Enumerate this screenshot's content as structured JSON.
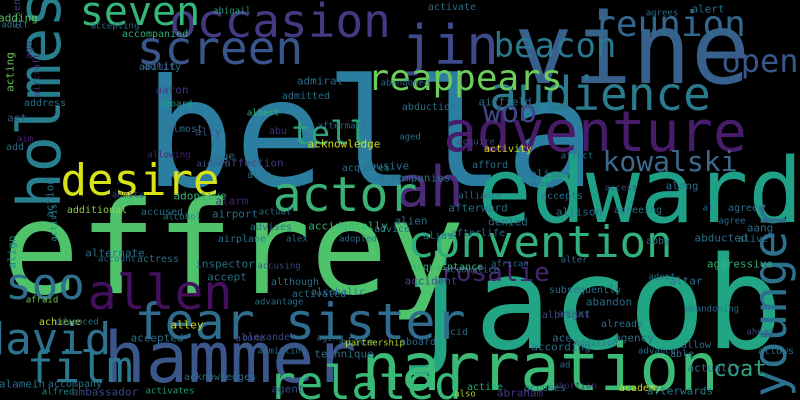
{
  "background": "#000000",
  "palette": [
    "#440154",
    "#3b528b",
    "#21918c",
    "#5ec962",
    "#fde725"
  ],
  "words": [
    {
      "text": "bella",
      "weight": 1.0,
      "color": "#2b7ea0",
      "vertical": false
    },
    {
      "text": "jacob",
      "weight": 0.86,
      "color": "#22a584",
      "vertical": false
    },
    {
      "text": "jeffrey",
      "weight": 0.86,
      "color": "#4ec36b",
      "vertical": false
    },
    {
      "text": "vine",
      "weight": 0.66,
      "color": "#37608d",
      "vertical": false
    },
    {
      "text": "edward",
      "weight": 0.6,
      "color": "#1fa187",
      "vertical": false
    },
    {
      "text": "hammer",
      "weight": 0.46,
      "color": "#3a568b",
      "vertical": false
    },
    {
      "text": "narration",
      "weight": 0.44,
      "color": "#3bbb75",
      "vertical": false
    },
    {
      "text": "holmes",
      "weight": 0.42,
      "color": "#277f8e",
      "vertical": true
    },
    {
      "text": "adventure",
      "weight": 0.38,
      "color": "#471d6b",
      "vertical": false
    },
    {
      "text": "ah",
      "weight": 0.38,
      "color": "#4a2a77",
      "vertical": false
    },
    {
      "text": "jin",
      "weight": 0.36,
      "color": "#3e4a89",
      "vertical": false
    },
    {
      "text": "fear sister",
      "weight": 0.34,
      "color": "#2f6c8e",
      "vertical": false
    },
    {
      "text": "actor",
      "weight": 0.32,
      "color": "#3ab177",
      "vertical": false
    },
    {
      "text": "allen",
      "weight": 0.32,
      "color": "#440f5c",
      "vertical": false
    },
    {
      "text": "related",
      "weight": 0.3,
      "color": "#37b978",
      "vertical": false
    },
    {
      "text": "younger",
      "weight": 0.3,
      "color": "#2c728e",
      "vertical": true
    },
    {
      "text": "screen",
      "weight": 0.3,
      "color": "#39558c",
      "vertical": false
    },
    {
      "text": "occasion",
      "weight": 0.3,
      "color": "#443a83",
      "vertical": false
    },
    {
      "text": "audience",
      "weight": 0.3,
      "color": "#2b7b8e",
      "vertical": false
    },
    {
      "text": "convention",
      "weight": 0.29,
      "color": "#30b07d",
      "vertical": false
    },
    {
      "text": "desire",
      "weight": 0.29,
      "color": "#d8e219",
      "vertical": false
    },
    {
      "text": "david",
      "weight": 0.29,
      "color": "#2d718e",
      "vertical": false
    },
    {
      "text": "film",
      "weight": 0.29,
      "color": "#2a788e",
      "vertical": false
    },
    {
      "text": "soo",
      "weight": 0.29,
      "color": "#2e6f8e",
      "vertical": false
    },
    {
      "text": "seven",
      "weight": 0.26,
      "color": "#35b779",
      "vertical": false
    },
    {
      "text": "reappears",
      "weight": 0.24,
      "color": "#6ccd5a",
      "vertical": false
    },
    {
      "text": "reunion",
      "weight": 0.24,
      "color": "#31688e",
      "vertical": false
    },
    {
      "text": "beacon",
      "weight": 0.22,
      "color": "#2a788e",
      "vertical": false
    },
    {
      "text": "open",
      "weight": 0.21,
      "color": "#38588c",
      "vertical": false
    },
    {
      "text": "tell",
      "weight": 0.21,
      "color": "#2ea37c",
      "vertical": false
    },
    {
      "text": "woo",
      "weight": 0.2,
      "color": "#3f4788",
      "vertical": false
    },
    {
      "text": "kowalski",
      "weight": 0.18,
      "color": "#3d6a8c",
      "vertical": false
    },
    {
      "text": "rosalie",
      "weight": 0.16,
      "color": "#46256f",
      "vertical": false
    },
    {
      "text": "coat",
      "weight": 0.14,
      "color": "#31a47d",
      "vertical": false
    },
    {
      "text": "absence",
      "weight": 0.05,
      "color": "#433e85",
      "vertical": false
    },
    {
      "text": "adding",
      "weight": 0.05,
      "color": "#5ec962",
      "vertical": false
    },
    {
      "text": "adult",
      "weight": 0.05,
      "color": "#2c7d8e",
      "vertical": false
    },
    {
      "text": "ago",
      "weight": 0.05,
      "color": "#46327e",
      "vertical": false
    },
    {
      "text": "acting",
      "weight": 0.05,
      "color": "#6ccd5a",
      "vertical": false
    },
    {
      "text": "aircraft",
      "weight": 0.05,
      "color": "#46307e",
      "vertical": false
    },
    {
      "text": "address",
      "weight": 0.05,
      "color": "#2d708e",
      "vertical": false
    },
    {
      "text": "act",
      "weight": 0.05,
      "color": "#38588c",
      "vertical": false
    },
    {
      "text": "aim",
      "weight": 0.05,
      "color": "#482475",
      "vertical": false
    },
    {
      "text": "add",
      "weight": 0.05,
      "color": "#2c728e",
      "vertical": false
    },
    {
      "text": "action",
      "weight": 0.05,
      "color": "#2a778e",
      "vertical": false
    },
    {
      "text": "activist",
      "weight": 0.05,
      "color": "#21918c",
      "vertical": false
    },
    {
      "text": "additional",
      "weight": 0.05,
      "color": "#8fd744",
      "vertical": false
    },
    {
      "text": "align",
      "weight": 0.05,
      "color": "#25858e",
      "vertical": false
    },
    {
      "text": "afraid",
      "weight": 0.05,
      "color": "#7ad151",
      "vertical": false
    },
    {
      "text": "achieve",
      "weight": 0.05,
      "color": "#c2df23",
      "vertical": false
    },
    {
      "text": "alamein",
      "weight": 0.05,
      "color": "#2c728e",
      "vertical": false
    },
    {
      "text": "alfred",
      "weight": 0.05,
      "color": "#21918c",
      "vertical": false
    },
    {
      "text": "accompany",
      "weight": 0.05,
      "color": "#2a788e",
      "vertical": false
    },
    {
      "text": "ambassador",
      "weight": 0.05,
      "color": "#3e4a89",
      "vertical": false
    },
    {
      "text": "activates",
      "weight": 0.05,
      "color": "#22a884",
      "vertical": false
    },
    {
      "text": "acknowledges",
      "weight": 0.05,
      "color": "#2c728e",
      "vertical": false
    },
    {
      "text": "agent",
      "weight": 0.05,
      "color": "#3b528b",
      "vertical": false
    },
    {
      "text": "also",
      "weight": 0.05,
      "color": "#addc30",
      "vertical": false
    },
    {
      "text": "active",
      "weight": 0.05,
      "color": "#2ab07f",
      "vertical": false
    },
    {
      "text": "abraham",
      "weight": 0.05,
      "color": "#433e85",
      "vertical": false
    },
    {
      "text": "abortion",
      "weight": 0.05,
      "color": "#482878",
      "vertical": false
    },
    {
      "text": "academy",
      "weight": 0.05,
      "color": "#d2e21b",
      "vertical": false
    },
    {
      "text": "afterwards",
      "weight": 0.05,
      "color": "#25858e",
      "vertical": false
    },
    {
      "text": "accepting",
      "weight": 0.05,
      "color": "#2c728e",
      "vertical": false
    },
    {
      "text": "accompanied",
      "weight": 0.05,
      "color": "#35b779",
      "vertical": false
    },
    {
      "text": "admit",
      "weight": 0.05,
      "color": "#3e4a89",
      "vertical": false
    },
    {
      "text": "abigail",
      "weight": 0.05,
      "color": "#22a884",
      "vertical": false
    },
    {
      "text": "ability",
      "weight": 0.05,
      "color": "#2a788e",
      "vertical": false
    },
    {
      "text": "aaron",
      "weight": 0.05,
      "color": "#443983",
      "vertical": false
    },
    {
      "text": "aboard",
      "weight": 0.05,
      "color": "#1fa187",
      "vertical": false
    },
    {
      "text": "almost",
      "weight": 0.05,
      "color": "#2e6e8e",
      "vertical": false
    },
    {
      "text": "ally",
      "weight": 0.05,
      "color": "#3b528b",
      "vertical": false
    },
    {
      "text": "albert",
      "weight": 0.05,
      "color": "#35b779",
      "vertical": false
    },
    {
      "text": "abu",
      "weight": 0.05,
      "color": "#46337f",
      "vertical": false
    },
    {
      "text": "abe",
      "weight": 0.05,
      "color": "#2c728e",
      "vertical": false
    },
    {
      "text": "allowing",
      "weight": 0.05,
      "color": "#482475",
      "vertical": false
    },
    {
      "text": "age",
      "weight": 0.05,
      "color": "#2c728e",
      "vertical": false
    },
    {
      "text": "affection",
      "weight": 0.05,
      "color": "#433e85",
      "vertical": false
    },
    {
      "text": "aided",
      "weight": 0.05,
      "color": "#3b528b",
      "vertical": false
    },
    {
      "text": "alec",
      "weight": 0.05,
      "color": "#2c728e",
      "vertical": false
    },
    {
      "text": "adoptive",
      "weight": 0.05,
      "color": "#35b779",
      "vertical": false
    },
    {
      "text": "admits",
      "weight": 0.05,
      "color": "#3e4a89",
      "vertical": false
    },
    {
      "text": "accused",
      "weight": 0.05,
      "color": "#2c728e",
      "vertical": false
    },
    {
      "text": "alarm",
      "weight": 0.05,
      "color": "#482878",
      "vertical": false
    },
    {
      "text": "alcohol",
      "weight": 0.05,
      "color": "#25858e",
      "vertical": false
    },
    {
      "text": "airplane",
      "weight": 0.05,
      "color": "#2a788e",
      "vertical": false
    },
    {
      "text": "airport",
      "weight": 0.05,
      "color": "#2c728e",
      "vertical": false
    },
    {
      "text": "actual",
      "weight": 0.05,
      "color": "#2c728e",
      "vertical": false
    },
    {
      "text": "advises",
      "weight": 0.05,
      "color": "#2c728e",
      "vertical": false
    },
    {
      "text": "alternate",
      "weight": 0.05,
      "color": "#2c728e",
      "vertical": false
    },
    {
      "text": "account",
      "weight": 0.05,
      "color": "#2c728e",
      "vertical": false
    },
    {
      "text": "actress",
      "weight": 0.05,
      "color": "#2c728e",
      "vertical": false
    },
    {
      "text": "inspector",
      "weight": 0.05,
      "color": "#2c728e",
      "vertical": false
    },
    {
      "text": "accusing",
      "weight": 0.05,
      "color": "#3e4a89",
      "vertical": false
    },
    {
      "text": "although",
      "weight": 0.05,
      "color": "#2c728e",
      "vertical": false
    },
    {
      "text": "accept",
      "weight": 0.05,
      "color": "#2c728e",
      "vertical": false
    },
    {
      "text": "advantage",
      "weight": 0.05,
      "color": "#2c728e",
      "vertical": false
    },
    {
      "text": "activated",
      "weight": 0.05,
      "color": "#2c728e",
      "vertical": false
    },
    {
      "text": "alley",
      "weight": 0.05,
      "color": "#d8e219",
      "vertical": false
    },
    {
      "text": "advanced",
      "weight": 0.05,
      "color": "#2c728e",
      "vertical": false
    },
    {
      "text": "alone",
      "weight": 0.05,
      "color": "#3e4a89",
      "vertical": false
    },
    {
      "text": "accepted",
      "weight": 0.05,
      "color": "#2c728e",
      "vertical": false
    },
    {
      "text": "aging",
      "weight": 0.05,
      "color": "#2c728e",
      "vertical": false
    },
    {
      "text": "alexander",
      "weight": 0.05,
      "color": "#3e4a89",
      "vertical": false
    },
    {
      "text": "alice",
      "weight": 0.05,
      "color": "#2c728e",
      "vertical": false
    },
    {
      "text": "partnership",
      "weight": 0.05,
      "color": "#c2df23",
      "vertical": false
    },
    {
      "text": "aboard",
      "weight": 0.05,
      "color": "#2c728e",
      "vertical": false
    },
    {
      "text": "technique",
      "weight": 0.05,
      "color": "#2c728e",
      "vertical": false
    },
    {
      "text": "admitting",
      "weight": 0.05,
      "color": "#2c728e",
      "vertical": false
    },
    {
      "text": "acid",
      "weight": 0.05,
      "color": "#2c728e",
      "vertical": false
    },
    {
      "text": "alien",
      "weight": 0.05,
      "color": "#2c728e",
      "vertical": false
    },
    {
      "text": "alex",
      "weight": 0.05,
      "color": "#2c728e",
      "vertical": false
    },
    {
      "text": "alias",
      "weight": 0.05,
      "color": "#2c728e",
      "vertical": false
    },
    {
      "text": "afterward",
      "weight": 0.05,
      "color": "#2c728e",
      "vertical": false
    },
    {
      "text": "alliance",
      "weight": 0.05,
      "color": "#2c728e",
      "vertical": false
    },
    {
      "text": "advice",
      "weight": 0.05,
      "color": "#2c728e",
      "vertical": false
    },
    {
      "text": "accidentally",
      "weight": 0.05,
      "color": "#35b779",
      "vertical": false
    },
    {
      "text": "adopted",
      "weight": 0.05,
      "color": "#2c728e",
      "vertical": false
    },
    {
      "text": "afterlife",
      "weight": 0.05,
      "color": "#2c728e",
      "vertical": false
    },
    {
      "text": "denied",
      "weight": 0.05,
      "color": "#2c728e",
      "vertical": false
    },
    {
      "text": "accomplice",
      "weight": 0.05,
      "color": "#2c728e",
      "vertical": false
    },
    {
      "text": "acquaintance",
      "weight": 0.05,
      "color": "#35b779",
      "vertical": false
    },
    {
      "text": "accident",
      "weight": 0.05,
      "color": "#3e4a89",
      "vertical": false
    },
    {
      "text": "african",
      "weight": 0.05,
      "color": "#2c728e",
      "vertical": false
    },
    {
      "text": "alcoholic",
      "weight": 0.05,
      "color": "#2c728e",
      "vertical": false
    },
    {
      "text": "acknowledge",
      "weight": 0.05,
      "color": "#d8e219",
      "vertical": false
    },
    {
      "text": "aftermath",
      "weight": 0.05,
      "color": "#2c728e",
      "vertical": false
    },
    {
      "text": "admitted",
      "weight": 0.05,
      "color": "#2c728e",
      "vertical": false
    },
    {
      "text": "admiral",
      "weight": 0.05,
      "color": "#2c728e",
      "vertical": false
    },
    {
      "text": "abandoned",
      "weight": 0.05,
      "color": "#2c728e",
      "vertical": false
    },
    {
      "text": "abduction",
      "weight": 0.05,
      "color": "#2c728e",
      "vertical": false
    },
    {
      "text": "airfield",
      "weight": 0.05,
      "color": "#2c728e",
      "vertical": false
    },
    {
      "text": "aged",
      "weight": 0.05,
      "color": "#2c728e",
      "vertical": false
    },
    {
      "text": "activity",
      "weight": 0.05,
      "color": "#d8e219",
      "vertical": false
    },
    {
      "text": "abusive",
      "weight": 0.05,
      "color": "#2c728e",
      "vertical": false
    },
    {
      "text": "acquire",
      "weight": 0.05,
      "color": "#3e4a89",
      "vertical": false
    },
    {
      "text": "acquires",
      "weight": 0.05,
      "color": "#2c728e",
      "vertical": false
    },
    {
      "text": "accompanies",
      "weight": 0.05,
      "color": "#2c728e",
      "vertical": false
    },
    {
      "text": "abbey",
      "weight": 0.05,
      "color": "#2c728e",
      "vertical": false
    },
    {
      "text": "afford",
      "weight": 0.05,
      "color": "#2c728e",
      "vertical": false
    },
    {
      "text": "alison",
      "weight": 0.05,
      "color": "#2c728e",
      "vertical": false
    },
    {
      "text": "affect",
      "weight": 0.05,
      "color": "#2c728e",
      "vertical": false
    },
    {
      "text": "accepts",
      "weight": 0.05,
      "color": "#2c728e",
      "vertical": false
    },
    {
      "text": "allison",
      "weight": 0.05,
      "color": "#2c728e",
      "vertical": false
    },
    {
      "text": "access",
      "weight": 0.05,
      "color": "#3e4a89",
      "vertical": false
    },
    {
      "text": "agreeing",
      "weight": 0.05,
      "color": "#2c728e",
      "vertical": false
    },
    {
      "text": "along",
      "weight": 0.05,
      "color": "#2c728e",
      "vertical": false
    },
    {
      "text": "al",
      "weight": 0.05,
      "color": "#2c728e",
      "vertical": false
    },
    {
      "text": "agreed",
      "weight": 0.05,
      "color": "#2c728e",
      "vertical": false
    },
    {
      "text": "aang",
      "weight": 0.05,
      "color": "#2c728e",
      "vertical": false
    },
    {
      "text": "agree",
      "weight": 0.05,
      "color": "#2c728e",
      "vertical": false
    },
    {
      "text": "alive",
      "weight": 0.05,
      "color": "#2c728e",
      "vertical": false
    },
    {
      "text": "aggressive",
      "weight": 0.05,
      "color": "#35b779",
      "vertical": false
    },
    {
      "text": "adopt",
      "weight": 0.05,
      "color": "#2c728e",
      "vertical": false
    },
    {
      "text": "abby",
      "weight": 0.05,
      "color": "#2c728e",
      "vertical": false
    },
    {
      "text": "abducted",
      "weight": 0.05,
      "color": "#2c728e",
      "vertical": false
    },
    {
      "text": "alter",
      "weight": 0.05,
      "color": "#2c728e",
      "vertical": false
    },
    {
      "text": "subsequently",
      "weight": 0.05,
      "color": "#2c728e",
      "vertical": false
    },
    {
      "text": "abandon",
      "weight": 0.05,
      "color": "#2c728e",
      "vertical": false
    },
    {
      "text": "addict",
      "weight": 0.05,
      "color": "#2c728e",
      "vertical": false
    },
    {
      "text": "albright",
      "weight": 0.05,
      "color": "#3e4a89",
      "vertical": false
    },
    {
      "text": "altar",
      "weight": 0.05,
      "color": "#2c728e",
      "vertical": false
    },
    {
      "text": "abandoning",
      "weight": 0.05,
      "color": "#2c728e",
      "vertical": false
    },
    {
      "text": "already",
      "weight": 0.05,
      "color": "#2c728e",
      "vertical": false
    },
    {
      "text": "agency",
      "weight": 0.05,
      "color": "#2c728e",
      "vertical": false
    },
    {
      "text": "ahead",
      "weight": 0.05,
      "color": "#3e4a89",
      "vertical": false
    },
    {
      "text": "allows",
      "weight": 0.05,
      "color": "#2c728e",
      "vertical": false
    },
    {
      "text": "ace",
      "weight": 0.05,
      "color": "#2c728e",
      "vertical": false
    },
    {
      "text": "addition",
      "weight": 0.05,
      "color": "#2c728e",
      "vertical": false
    },
    {
      "text": "allow",
      "weight": 0.05,
      "color": "#2c728e",
      "vertical": false
    },
    {
      "text": "actually",
      "weight": 0.05,
      "color": "#2c728e",
      "vertical": false
    },
    {
      "text": "advance",
      "weight": 0.05,
      "color": "#2c728e",
      "vertical": false
    },
    {
      "text": "accuses",
      "weight": 0.05,
      "color": "#2c728e",
      "vertical": false
    },
    {
      "text": "according",
      "weight": 0.05,
      "color": "#2c728e",
      "vertical": false
    },
    {
      "text": "ad",
      "weight": 0.05,
      "color": "#2c728e",
      "vertical": false
    },
    {
      "text": "able",
      "weight": 0.05,
      "color": "#2c728e",
      "vertical": false
    },
    {
      "text": "alert",
      "weight": 0.05,
      "color": "#2c728e",
      "vertical": false
    },
    {
      "text": "agrees",
      "weight": 0.05,
      "color": "#2c728e",
      "vertical": false
    },
    {
      "text": "activate",
      "weight": 0.05,
      "color": "#2c728e",
      "vertical": false
    }
  ]
}
